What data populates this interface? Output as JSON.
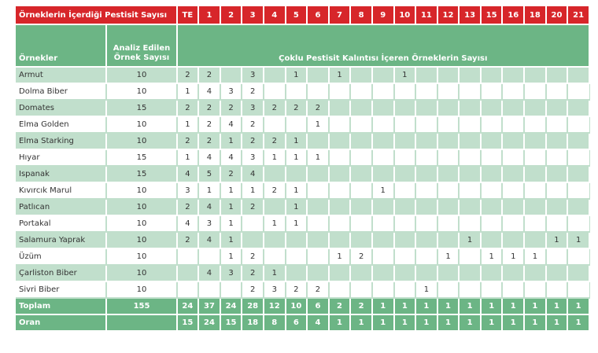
{
  "table": {
    "corner_title": "Örneklerin İçerdiği Pestisit Sayısı",
    "pesticide_counts": [
      "TE",
      "1",
      "2",
      "3",
      "4",
      "5",
      "6",
      "7",
      "8",
      "9",
      "10",
      "11",
      "12",
      "13",
      "15",
      "16",
      "18",
      "20",
      "21"
    ],
    "col_samples_label": "Örnekler",
    "col_analyzed_line1": "Analiz Edilen",
    "col_analyzed_line2": "Örnek Sayısı",
    "multi_residue_label": "Çoklu Pestisit Kalıntısı İçeren Örneklerin Sayısı",
    "rows": [
      {
        "name": "Armut",
        "count": "10",
        "cells": [
          "2",
          "2",
          "",
          "3",
          "",
          "1",
          "",
          "1",
          "",
          "",
          "1",
          "",
          "",
          "",
          "",
          "",
          "",
          "",
          ""
        ]
      },
      {
        "name": "Dolma Biber",
        "count": "10",
        "cells": [
          "1",
          "4",
          "3",
          "2",
          "",
          "",
          "",
          "",
          "",
          "",
          "",
          "",
          "",
          "",
          "",
          "",
          "",
          "",
          ""
        ]
      },
      {
        "name": "Domates",
        "count": "15",
        "cells": [
          "2",
          "2",
          "2",
          "3",
          "2",
          "2",
          "2",
          "",
          "",
          "",
          "",
          "",
          "",
          "",
          "",
          "",
          "",
          "",
          ""
        ]
      },
      {
        "name": "Elma Golden",
        "count": "10",
        "cells": [
          "1",
          "2",
          "4",
          "2",
          "",
          "",
          "1",
          "",
          "",
          "",
          "",
          "",
          "",
          "",
          "",
          "",
          "",
          "",
          ""
        ]
      },
      {
        "name": "Elma Starking",
        "count": "10",
        "cells": [
          "2",
          "2",
          "1",
          "2",
          "2",
          "1",
          "",
          "",
          "",
          "",
          "",
          "",
          "",
          "",
          "",
          "",
          "",
          "",
          ""
        ]
      },
      {
        "name": "Hıyar",
        "count": "15",
        "cells": [
          "1",
          "4",
          "4",
          "3",
          "1",
          "1",
          "1",
          "",
          "",
          "",
          "",
          "",
          "",
          "",
          "",
          "",
          "",
          "",
          ""
        ]
      },
      {
        "name": "Ispanak",
        "count": "15",
        "cells": [
          "4",
          "5",
          "2",
          "4",
          "",
          "",
          "",
          "",
          "",
          "",
          "",
          "",
          "",
          "",
          "",
          "",
          "",
          "",
          ""
        ]
      },
      {
        "name": "Kıvırcık Marul",
        "count": "10",
        "cells": [
          "3",
          "1",
          "1",
          "1",
          "2",
          "1",
          "",
          "",
          "",
          "1",
          "",
          "",
          "",
          "",
          "",
          "",
          "",
          "",
          ""
        ]
      },
      {
        "name": "Patlıcan",
        "count": "10",
        "cells": [
          "2",
          "4",
          "1",
          "2",
          "",
          "1",
          "",
          "",
          "",
          "",
          "",
          "",
          "",
          "",
          "",
          "",
          "",
          "",
          ""
        ]
      },
      {
        "name": "Portakal",
        "count": "10",
        "cells": [
          "4",
          "3",
          "1",
          "",
          "1",
          "1",
          "",
          "",
          "",
          "",
          "",
          "",
          "",
          "",
          "",
          "",
          "",
          "",
          ""
        ]
      },
      {
        "name": "Salamura Yaprak",
        "count": "10",
        "cells": [
          "2",
          "4",
          "1",
          "",
          "",
          "",
          "",
          "",
          "",
          "",
          "",
          "",
          "",
          "1",
          "",
          "",
          "",
          "1",
          "1"
        ]
      },
      {
        "name": "Üzüm",
        "count": "10",
        "cells": [
          "",
          "",
          "1",
          "2",
          "",
          "",
          "",
          "1",
          "2",
          "",
          "",
          "",
          "1",
          "",
          "1",
          "1",
          "1",
          "",
          ""
        ]
      },
      {
        "name": "Çarliston Biber",
        "count": "10",
        "cells": [
          "",
          "4",
          "3",
          "2",
          "1",
          "",
          "",
          "",
          "",
          "",
          "",
          "",
          "",
          "",
          "",
          "",
          "",
          "",
          ""
        ]
      },
      {
        "name": "Sivri Biber",
        "count": "10",
        "cells": [
          "",
          "",
          "",
          "2",
          "3",
          "2",
          "2",
          "",
          "",
          "",
          "",
          "1",
          "",
          "",
          "",
          "",
          "",
          "",
          ""
        ]
      }
    ],
    "total": {
      "label": "Toplam",
      "count": "155",
      "cells": [
        "24",
        "37",
        "24",
        "28",
        "12",
        "10",
        "6",
        "2",
        "2",
        "1",
        "1",
        "1",
        "1",
        "1",
        "1",
        "1",
        "1",
        "1",
        "1"
      ]
    },
    "ratio": {
      "label": "Oran",
      "count": "",
      "cells": [
        "15",
        "24",
        "15",
        "18",
        "8",
        "6",
        "4",
        "1",
        "1",
        "1",
        "1",
        "1",
        "1",
        "1",
        "1",
        "1",
        "1",
        "1",
        "1"
      ]
    }
  },
  "colors": {
    "header_red": "#d7262a",
    "header_green": "#6cb585",
    "row_tint": "#c1dfcc"
  }
}
